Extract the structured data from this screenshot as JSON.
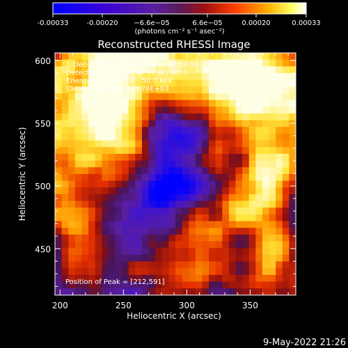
{
  "colorbar": {
    "ticks": [
      "-0.00033",
      "-0.00020",
      "−6.6e−05",
      "6.6e−05",
      "0.00020",
      "0.00033"
    ],
    "units_label": "(photons cm⁻² s⁻¹ asec⁻²)"
  },
  "chart_data": {
    "type": "heatmap",
    "title": "Reconstructed RHESSI Image",
    "xlabel": "Heliocentric X (arcsec)",
    "ylabel": "Heliocentric Y (arcsec)",
    "xlim": [
      196,
      386
    ],
    "ylim": [
      413,
      606
    ],
    "xticks": [
      200,
      250,
      300,
      350
    ],
    "yticks": [
      450,
      500,
      550,
      600
    ],
    "colorscale": "red-temperature (blue to purple to red to orange to yellow to white)",
    "value_range": [
      -0.00033,
      0.00033
    ],
    "annotations": [
      "1-Dec-2005 03:15:40.000 to 03:19:04.000",
      "Detectors: 3F 4F 5F 6F 7F 8F, Att 0",
      "Energy Range: 25.0 - 50.0 keV",
      "Clean    Total counts: 5.76E+03"
    ],
    "peak_label": "Position of Peak = [212,591]",
    "peak": [
      212,
      591
    ]
  },
  "footer": {
    "timestamp": "9-May-2022 21:26"
  }
}
